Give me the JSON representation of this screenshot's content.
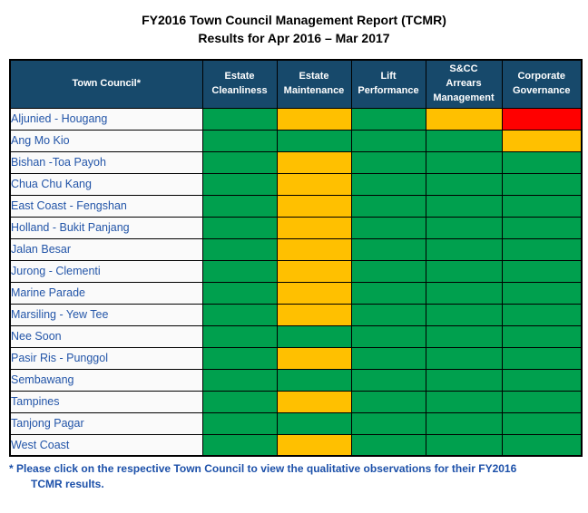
{
  "chart_data": {
    "type": "heatmap",
    "title": "FY2016 Town Council Management Report (TCMR)",
    "subtitle": "Results for Apr 2016 – Mar 2017",
    "row_header": "Town Council*",
    "columns": [
      {
        "label": "Estate\nCleanliness"
      },
      {
        "label": "Estate\nMaintenance"
      },
      {
        "label": "Lift\nPerformance"
      },
      {
        "label": "S&CC\nArrears\nManagement"
      },
      {
        "label": "Corporate\nGovernance"
      }
    ],
    "rows": [
      {
        "name": "Aljunied - Hougang",
        "ratings": [
          "green",
          "yellow",
          "green",
          "yellow",
          "red"
        ]
      },
      {
        "name": "Ang Mo Kio",
        "ratings": [
          "green",
          "green",
          "green",
          "green",
          "yellow"
        ]
      },
      {
        "name": "Bishan -Toa Payoh",
        "ratings": [
          "green",
          "yellow",
          "green",
          "green",
          "green"
        ]
      },
      {
        "name": "Chua Chu Kang",
        "ratings": [
          "green",
          "yellow",
          "green",
          "green",
          "green"
        ]
      },
      {
        "name": "East Coast - Fengshan",
        "ratings": [
          "green",
          "yellow",
          "green",
          "green",
          "green"
        ]
      },
      {
        "name": "Holland - Bukit Panjang",
        "ratings": [
          "green",
          "yellow",
          "green",
          "green",
          "green"
        ]
      },
      {
        "name": "Jalan Besar",
        "ratings": [
          "green",
          "yellow",
          "green",
          "green",
          "green"
        ]
      },
      {
        "name": "Jurong - Clementi",
        "ratings": [
          "green",
          "yellow",
          "green",
          "green",
          "green"
        ]
      },
      {
        "name": "Marine Parade",
        "ratings": [
          "green",
          "yellow",
          "green",
          "green",
          "green"
        ]
      },
      {
        "name": "Marsiling - Yew Tee",
        "ratings": [
          "green",
          "yellow",
          "green",
          "green",
          "green"
        ]
      },
      {
        "name": "Nee Soon",
        "ratings": [
          "green",
          "green",
          "green",
          "green",
          "green"
        ]
      },
      {
        "name": "Pasir Ris - Punggol",
        "ratings": [
          "green",
          "yellow",
          "green",
          "green",
          "green"
        ]
      },
      {
        "name": "Sembawang",
        "ratings": [
          "green",
          "green",
          "green",
          "green",
          "green"
        ]
      },
      {
        "name": "Tampines",
        "ratings": [
          "green",
          "yellow",
          "green",
          "green",
          "green"
        ]
      },
      {
        "name": "Tanjong Pagar",
        "ratings": [
          "green",
          "green",
          "green",
          "green",
          "green"
        ]
      },
      {
        "name": "West Coast",
        "ratings": [
          "green",
          "yellow",
          "green",
          "green",
          "green"
        ]
      }
    ],
    "palette": {
      "green": "#00A04E",
      "yellow": "#FFC000",
      "red": "#FF0000"
    }
  },
  "footnote": {
    "line1": "* Please click on the respective Town Council to view the qualitative observations for their FY2016",
    "line2": "TCMR results."
  },
  "colors": {
    "header_bg": "#17496B",
    "header_text": "#FFFFFF",
    "row_bg": "#FAFAFA",
    "town_text": "#2355A8",
    "footnote_text": "#1C50A9",
    "border": "#000000"
  }
}
